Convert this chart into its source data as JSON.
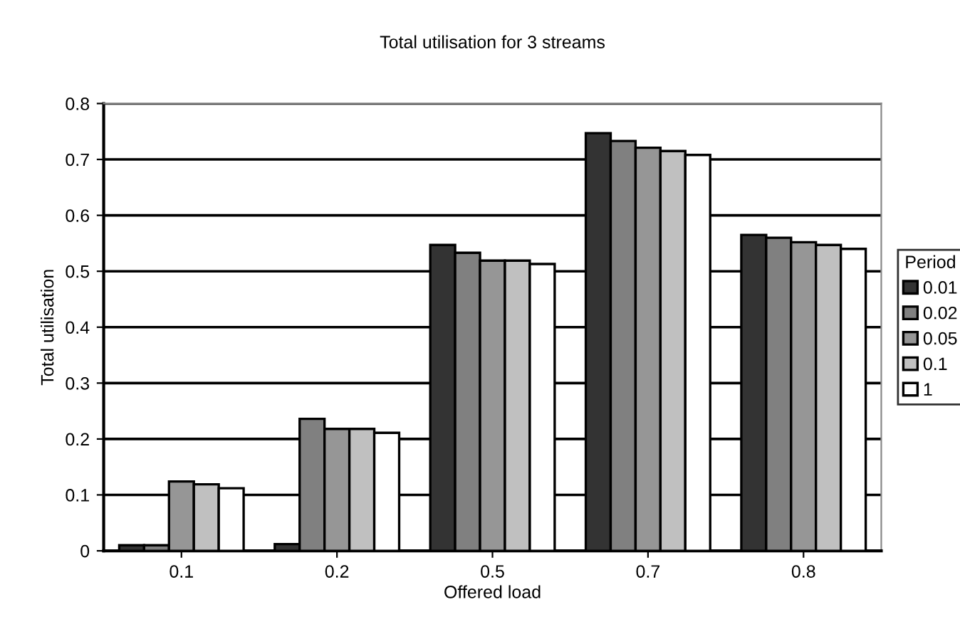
{
  "chart_data": {
    "type": "bar",
    "title": "Total utilisation for 3 streams",
    "xlabel": "Offered load",
    "ylabel": "Total utilisation",
    "legend_title": "Period",
    "categories": [
      "0.1",
      "0.2",
      "0.5",
      "0.7",
      "0.8"
    ],
    "series": [
      {
        "name": "0.01",
        "color": "#333333",
        "values": [
          0.01,
          0.012,
          0.547,
          0.747,
          0.565
        ]
      },
      {
        "name": "0.02",
        "color": "#808080",
        "values": [
          0.01,
          0.236,
          0.533,
          0.733,
          0.56
        ]
      },
      {
        "name": "0.05",
        "color": "#969696",
        "values": [
          0.124,
          0.218,
          0.519,
          0.721,
          0.552
        ]
      },
      {
        "name": "0.1",
        "color": "#c0c0c0",
        "values": [
          0.119,
          0.218,
          0.519,
          0.715,
          0.547
        ]
      },
      {
        "name": "1",
        "color": "#ffffff",
        "values": [
          0.112,
          0.211,
          0.513,
          0.708,
          0.54
        ]
      }
    ],
    "ylim": [
      0,
      0.8
    ],
    "yticks": [
      0,
      0.1,
      0.2,
      0.3,
      0.4,
      0.5,
      0.6,
      0.7,
      0.8
    ],
    "grid": "y",
    "legend": "right"
  }
}
